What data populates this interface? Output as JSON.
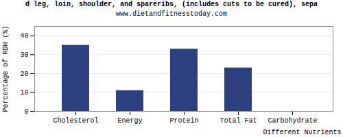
{
  "chart_data": {
    "type": "bar",
    "title": "d leg, loin, shoulder, and spareribs, (includes cuts to be cured), sepa",
    "subtitle": "www.dietandfitnesstoday.com",
    "xlabel": "Different Nutrients",
    "ylabel": "Percentage of RDH (%)",
    "categories": [
      "Cholesterol",
      "Energy",
      "Protein",
      "Total Fat",
      "Carbohydrate"
    ],
    "values": [
      35,
      11,
      33,
      23,
      0
    ],
    "color": "#2d4080",
    "ylim": [
      0,
      45
    ],
    "yticks": [
      0,
      10,
      20,
      30,
      40
    ],
    "grid": true
  }
}
